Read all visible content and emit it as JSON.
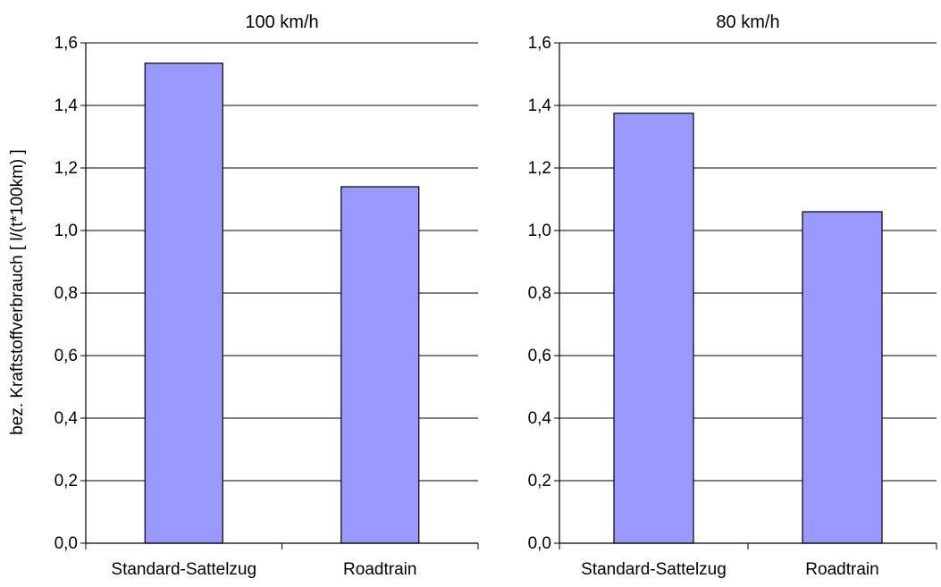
{
  "ylabel": "bez. Kraftstoffverbrauch [ l/(t*100km) ]",
  "colors": {
    "bar": "#9999ff",
    "bar_stroke": "#000000",
    "grid": "#000000",
    "background": "#ffffff"
  },
  "chart_data": [
    {
      "type": "bar",
      "title": "100 km/h",
      "categories": [
        "Standard-Sattelzug",
        "Roadtrain"
      ],
      "values": [
        1.535,
        1.14
      ],
      "ylim": [
        0,
        1.6
      ],
      "yticks": [
        "0,0",
        "0,2",
        "0,4",
        "0,6",
        "0,8",
        "1,0",
        "1,2",
        "1,4",
        "1,6"
      ],
      "grid": true
    },
    {
      "type": "bar",
      "title": "80 km/h",
      "categories": [
        "Standard-Sattelzug",
        "Roadtrain"
      ],
      "values": [
        1.375,
        1.06
      ],
      "ylim": [
        0,
        1.6
      ],
      "yticks": [
        "0,0",
        "0,2",
        "0,4",
        "0,6",
        "0,8",
        "1,0",
        "1,2",
        "1,4",
        "1,6"
      ],
      "grid": true
    }
  ]
}
